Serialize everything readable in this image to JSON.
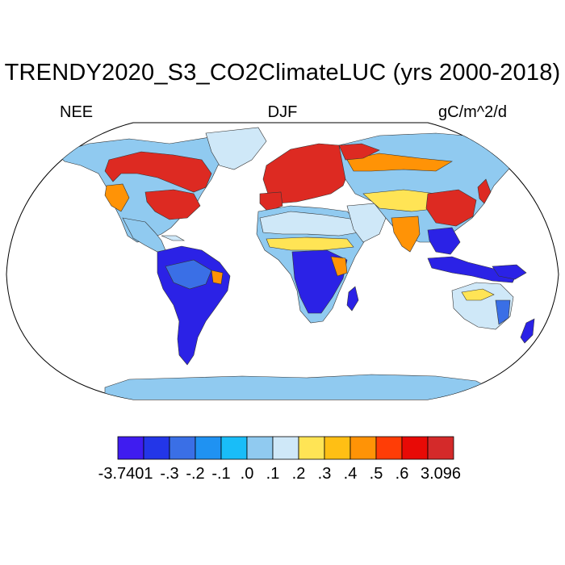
{
  "title": "TRENDY2020_S3_CO2ClimateLUC (yrs 2000-2018)",
  "subtitle_left": "NEE",
  "subtitle_center": "DJF",
  "subtitle_right": "gC/m^2/d",
  "colorbar": {
    "colors": [
      "#3f1cf0",
      "#2336e8",
      "#3a6fe6",
      "#1f92f2",
      "#19bdf8",
      "#90caf0",
      "#cfe8f8",
      "#ffe455",
      "#ffbf14",
      "#ff9306",
      "#ff3d06",
      "#e80a06",
      "#d42a2a"
    ],
    "labels": [
      "-3.7401",
      "-.3",
      "-.2",
      "-.1",
      ".0",
      ".1",
      ".2",
      ".3",
      ".4",
      ".5",
      ".6",
      "3.096"
    ]
  },
  "map": {
    "ocean_color": "#ffffff",
    "land_base_color": "#90caf0",
    "region_colors": {
      "source_strong": "#dd2a22",
      "source_mid": "#ff9306",
      "source_low": "#ffe455",
      "near_zero": "#cfe8f8",
      "sink_strong": "#2b22e6",
      "sink_mid": "#3a6fe6"
    }
  }
}
